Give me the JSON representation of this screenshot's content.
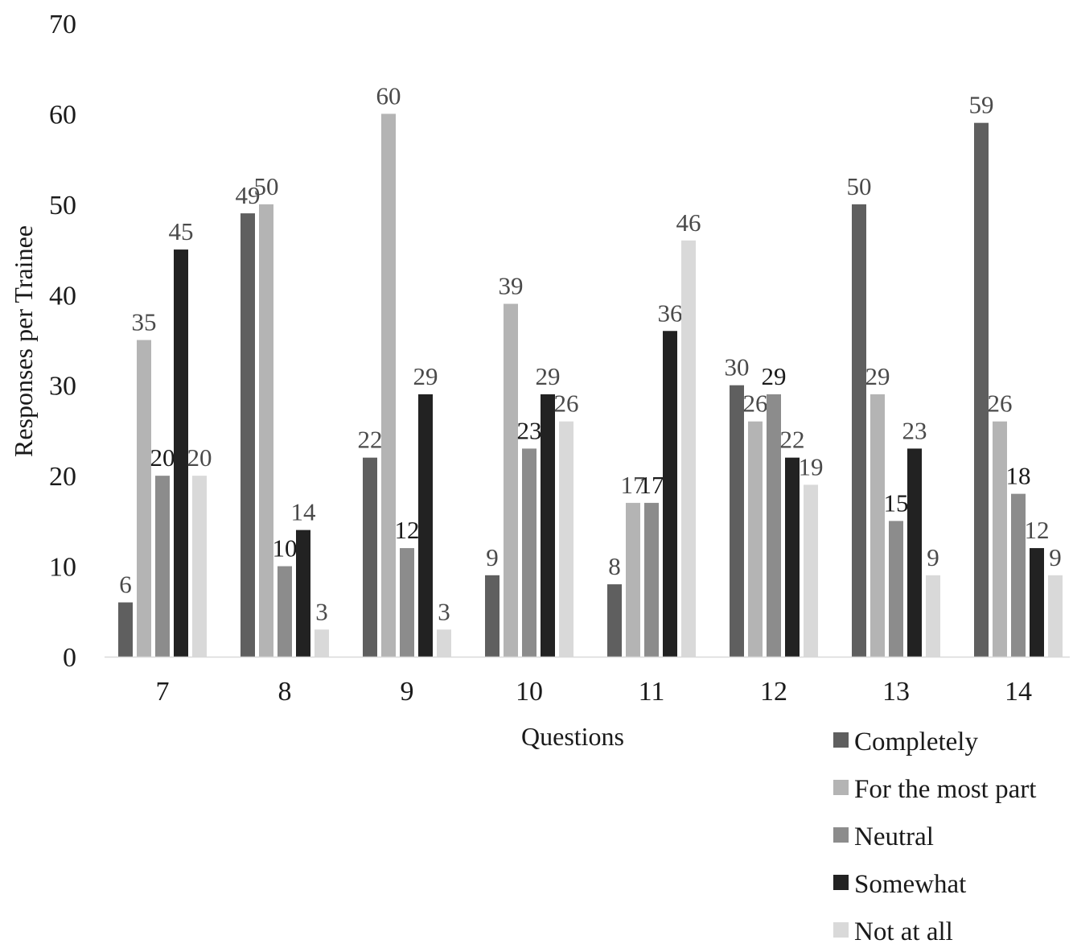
{
  "chart_data": {
    "type": "bar",
    "title": "",
    "xlabel": "Questions",
    "ylabel": "Responses per Trainee",
    "ylim": [
      0,
      70
    ],
    "yticks": [
      "0",
      "10",
      "20",
      "30",
      "40",
      "50",
      "60",
      "70"
    ],
    "categories": [
      "7",
      "8",
      "9",
      "10",
      "11",
      "12",
      "13",
      "14"
    ],
    "series": [
      {
        "name": "Completely",
        "color": "#5f5f5f",
        "label_color": "#4a4a4a",
        "values": [
          6,
          49,
          22,
          9,
          8,
          30,
          50,
          59
        ]
      },
      {
        "name": "For the most part",
        "color": "#b4b4b4",
        "label_color": "#4a4a4a",
        "values": [
          35,
          50,
          60,
          39,
          17,
          26,
          29,
          26
        ]
      },
      {
        "name": "Neutral",
        "color": "#8c8c8c",
        "label_color": "#1a1a1a",
        "values": [
          20,
          10,
          12,
          23,
          17,
          29,
          15,
          18
        ]
      },
      {
        "name": "Somewhat",
        "color": "#222222",
        "label_color": "#4a4a4a",
        "values": [
          45,
          14,
          29,
          29,
          36,
          22,
          23,
          12
        ]
      },
      {
        "name": "Not at all",
        "color": "#d9d9d9",
        "label_color": "#4a4a4a",
        "values": [
          20,
          3,
          3,
          26,
          46,
          19,
          9,
          9
        ]
      }
    ],
    "legend_position": "bottom-right",
    "grid": false
  }
}
